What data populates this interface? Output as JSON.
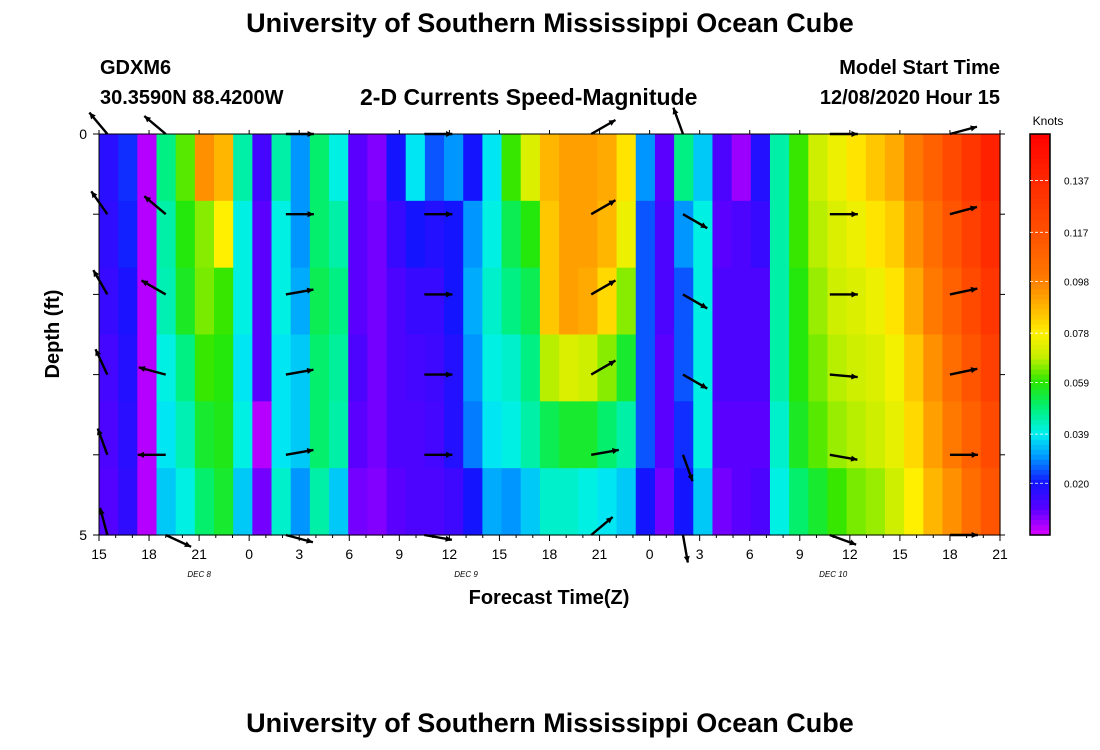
{
  "header": {
    "title": "University of Southern Mississippi Ocean Cube",
    "station": "GDXM6",
    "coords": "30.3590N 88.4200W",
    "plot_title": "2-D Currents Speed-Magnitude",
    "start_label": "Model Start Time",
    "start_value": "12/08/2020 Hour 15"
  },
  "footer": {
    "title": "University of Southern Mississippi Ocean Cube"
  },
  "chart_data": {
    "type": "heatmap",
    "title": "2-D Currents Speed-Magnitude",
    "xlabel": "Forecast Time(Z)",
    "ylabel": "Depth (ft)",
    "x_tick_labels": [
      "15",
      "18",
      "21",
      "0",
      "3",
      "6",
      "9",
      "12",
      "15",
      "18",
      "21",
      "0",
      "3",
      "6",
      "9",
      "12",
      "15",
      "18",
      "21"
    ],
    "y_range": [
      0,
      5
    ],
    "y_tick_labels": [
      "0",
      "5"
    ],
    "day_labels": [
      {
        "text": "DEC  8",
        "hour": 6
      },
      {
        "text": "DEC  9",
        "hour": 22
      },
      {
        "text": "DEC  10",
        "hour": 44
      }
    ],
    "colorbar": {
      "label": "Knots",
      "ticks": [
        "0.020",
        "0.039",
        "0.059",
        "0.078",
        "0.098",
        "0.117",
        "0.137"
      ],
      "tick_values": [
        0.02,
        0.039,
        0.059,
        0.078,
        0.098,
        0.117,
        0.137
      ],
      "range": [
        0,
        0.155
      ]
    },
    "speed_levels": [
      0.0,
      1.0,
      2.0,
      3.0,
      4.0,
      5.0
    ],
    "speed_columns_knots": [
      [
        0.017,
        0.016,
        0.015,
        0.013,
        0.012,
        0.011
      ],
      [
        0.022,
        0.021,
        0.019,
        0.018,
        0.017,
        0.016
      ],
      [
        0.003,
        0.003,
        0.003,
        0.003,
        0.003,
        0.003
      ],
      [
        0.048,
        0.045,
        0.044,
        0.04,
        0.038,
        0.035
      ],
      [
        0.062,
        0.058,
        0.056,
        0.048,
        0.044,
        0.04
      ],
      [
        0.095,
        0.065,
        0.064,
        0.06,
        0.055,
        0.05
      ],
      [
        0.088,
        0.078,
        0.06,
        0.058,
        0.057,
        0.055
      ],
      [
        0.045,
        0.04,
        0.04,
        0.038,
        0.04,
        0.035
      ],
      [
        0.013,
        0.01,
        0.01,
        0.01,
        0.003,
        0.008
      ],
      [
        0.045,
        0.04,
        0.04,
        0.038,
        0.038,
        0.042
      ],
      [
        0.03,
        0.03,
        0.032,
        0.035,
        0.035,
        0.03
      ],
      [
        0.05,
        0.05,
        0.052,
        0.05,
        0.05,
        0.045
      ],
      [
        0.04,
        0.045,
        0.048,
        0.046,
        0.045,
        0.035
      ],
      [
        0.01,
        0.01,
        0.01,
        0.012,
        0.01,
        0.008
      ],
      [
        0.007,
        0.008,
        0.008,
        0.008,
        0.008,
        0.007
      ],
      [
        0.02,
        0.015,
        0.012,
        0.012,
        0.012,
        0.01
      ],
      [
        0.038,
        0.02,
        0.015,
        0.013,
        0.012,
        0.012
      ],
      [
        0.025,
        0.018,
        0.015,
        0.014,
        0.013,
        0.012
      ],
      [
        0.03,
        0.02,
        0.02,
        0.018,
        0.018,
        0.014
      ],
      [
        0.02,
        0.03,
        0.032,
        0.03,
        0.028,
        0.02
      ],
      [
        0.038,
        0.04,
        0.042,
        0.04,
        0.038,
        0.032
      ],
      [
        0.06,
        0.052,
        0.048,
        0.042,
        0.04,
        0.03
      ],
      [
        0.072,
        0.058,
        0.052,
        0.048,
        0.045,
        0.035
      ],
      [
        0.088,
        0.085,
        0.085,
        0.068,
        0.052,
        0.042
      ],
      [
        0.092,
        0.092,
        0.092,
        0.072,
        0.055,
        0.042
      ],
      [
        0.092,
        0.092,
        0.09,
        0.07,
        0.055,
        0.04
      ],
      [
        0.09,
        0.088,
        0.082,
        0.065,
        0.05,
        0.038
      ],
      [
        0.08,
        0.075,
        0.065,
        0.055,
        0.045,
        0.035
      ],
      [
        0.03,
        0.025,
        0.025,
        0.025,
        0.025,
        0.02
      ],
      [
        0.01,
        0.012,
        0.012,
        0.01,
        0.01,
        0.008
      ],
      [
        0.048,
        0.03,
        0.025,
        0.025,
        0.022,
        0.02
      ],
      [
        0.035,
        0.04,
        0.04,
        0.04,
        0.04,
        0.035
      ],
      [
        0.012,
        0.01,
        0.012,
        0.012,
        0.01,
        0.008
      ],
      [
        0.005,
        0.012,
        0.012,
        0.012,
        0.01,
        0.01
      ],
      [
        0.018,
        0.015,
        0.012,
        0.012,
        0.01,
        0.012
      ],
      [
        0.045,
        0.045,
        0.045,
        0.045,
        0.042,
        0.04
      ],
      [
        0.06,
        0.06,
        0.058,
        0.058,
        0.056,
        0.05
      ],
      [
        0.07,
        0.068,
        0.066,
        0.064,
        0.062,
        0.055
      ],
      [
        0.075,
        0.072,
        0.07,
        0.068,
        0.066,
        0.06
      ],
      [
        0.08,
        0.075,
        0.072,
        0.07,
        0.068,
        0.064
      ],
      [
        0.085,
        0.08,
        0.075,
        0.072,
        0.07,
        0.066
      ],
      [
        0.09,
        0.084,
        0.08,
        0.076,
        0.074,
        0.07
      ],
      [
        0.1,
        0.095,
        0.09,
        0.085,
        0.082,
        0.078
      ],
      [
        0.11,
        0.105,
        0.1,
        0.095,
        0.092,
        0.088
      ],
      [
        0.12,
        0.115,
        0.11,
        0.105,
        0.1,
        0.095
      ],
      [
        0.13,
        0.125,
        0.12,
        0.115,
        0.11,
        0.105
      ],
      [
        0.14,
        0.135,
        0.13,
        0.125,
        0.12,
        0.115
      ]
    ],
    "vector_hours": [
      0.5,
      4,
      11.2,
      19.5,
      29.5,
      35,
      43.8,
      51
    ],
    "vector_levels": [
      0,
      1,
      2,
      3,
      4,
      5
    ],
    "vector_angles_deg": [
      [
        -130,
        -125,
        -120,
        -115,
        -110,
        -105
      ],
      [
        -140,
        -140,
        -150,
        -165,
        -180,
        25
      ],
      [
        0,
        0,
        -10,
        -10,
        -10,
        15
      ],
      [
        0,
        0,
        0,
        0,
        0,
        10
      ],
      [
        -30,
        -30,
        -30,
        -30,
        -10,
        -40
      ],
      [
        -110,
        30,
        30,
        30,
        70,
        80
      ],
      [
        0,
        0,
        0,
        5,
        10,
        20
      ],
      [
        -15,
        -15,
        -12,
        -12,
        0,
        0
      ]
    ]
  }
}
